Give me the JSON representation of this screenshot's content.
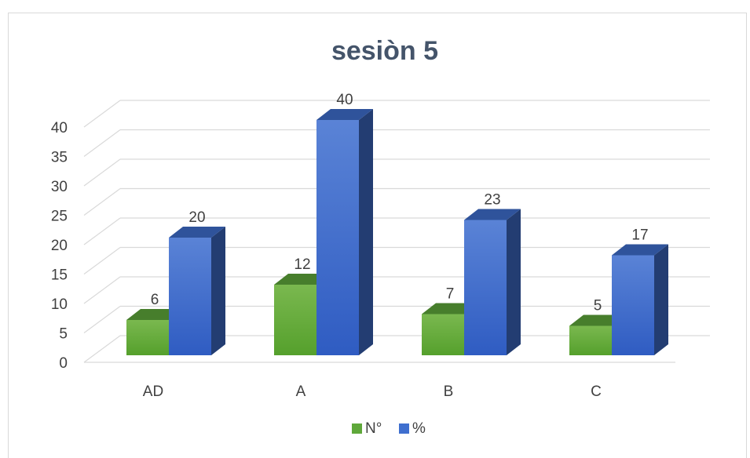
{
  "chart_data": {
    "type": "bar",
    "title": "sesiòn 5",
    "categories": [
      "AD",
      "A",
      "B",
      "C"
    ],
    "series": [
      {
        "name": "N°",
        "values": [
          6,
          12,
          7,
          5
        ],
        "color": "#5fa83a"
      },
      {
        "name": "%",
        "values": [
          20,
          40,
          23,
          17
        ],
        "color": "#3f6fcf"
      }
    ],
    "yticks": [
      0,
      5,
      10,
      15,
      20,
      25,
      30,
      35,
      40
    ],
    "ylim": [
      0,
      40
    ],
    "grid": true,
    "legend": "bottom",
    "style": "3d-column"
  }
}
